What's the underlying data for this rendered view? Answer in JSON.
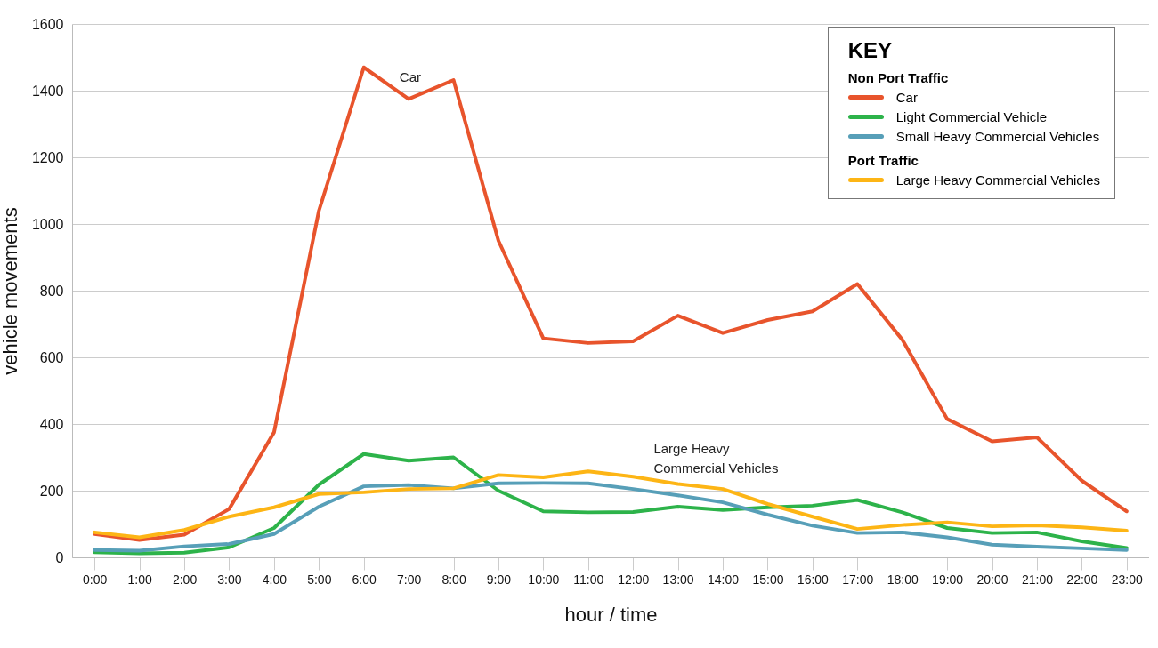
{
  "chart_data": {
    "type": "line",
    "xlabel": "hour / time",
    "ylabel": "vehicle movements",
    "legend_title": "KEY",
    "legend": "top right",
    "grid": "y",
    "line_style": "solid",
    "categories": [
      "0:00",
      "1:00",
      "2:00",
      "3:00",
      "4:00",
      "5:00",
      "6:00",
      "7:00",
      "8:00",
      "9:00",
      "10:00",
      "11:00",
      "12:00",
      "13:00",
      "14:00",
      "15:00",
      "16:00",
      "17:00",
      "18:00",
      "19:00",
      "20:00",
      "21:00",
      "22:00",
      "23:00"
    ],
    "ylim": [
      0,
      1600
    ],
    "yticks": [
      0,
      200,
      400,
      600,
      800,
      1000,
      1200,
      1400,
      1600
    ],
    "series": [
      {
        "name": "Car",
        "color": "#e8542c",
        "values": [
          70,
          52,
          68,
          145,
          375,
          1040,
          1470,
          1375,
          1432,
          950,
          657,
          643,
          648,
          725,
          673,
          712,
          738,
          820,
          653,
          415,
          348,
          360,
          230,
          138
        ]
      },
      {
        "name": "Light Commercial Vehicle",
        "color": "#2db34a",
        "values": [
          15,
          12,
          14,
          30,
          88,
          218,
          310,
          290,
          300,
          200,
          138,
          135,
          136,
          152,
          142,
          150,
          155,
          172,
          135,
          88,
          73,
          75,
          48,
          28
        ]
      },
      {
        "name": "Small Heavy Commercial Vehicles",
        "color": "#579fb8",
        "values": [
          22,
          20,
          33,
          40,
          70,
          152,
          213,
          217,
          207,
          222,
          223,
          222,
          205,
          186,
          165,
          128,
          95,
          73,
          75,
          60,
          38,
          32,
          27,
          22
        ]
      },
      {
        "name": "Large Heavy Commercial Vehicles",
        "color": "#fdb515",
        "values": [
          75,
          60,
          82,
          122,
          150,
          190,
          195,
          205,
          207,
          247,
          240,
          258,
          242,
          220,
          205,
          160,
          122,
          85,
          97,
          105,
          93,
          96,
          90,
          80
        ]
      }
    ],
    "annotations": [
      "Car",
      "Large Heavy Commercial Vehicles",
      "Non Port Traffic",
      "Port Traffic"
    ]
  }
}
